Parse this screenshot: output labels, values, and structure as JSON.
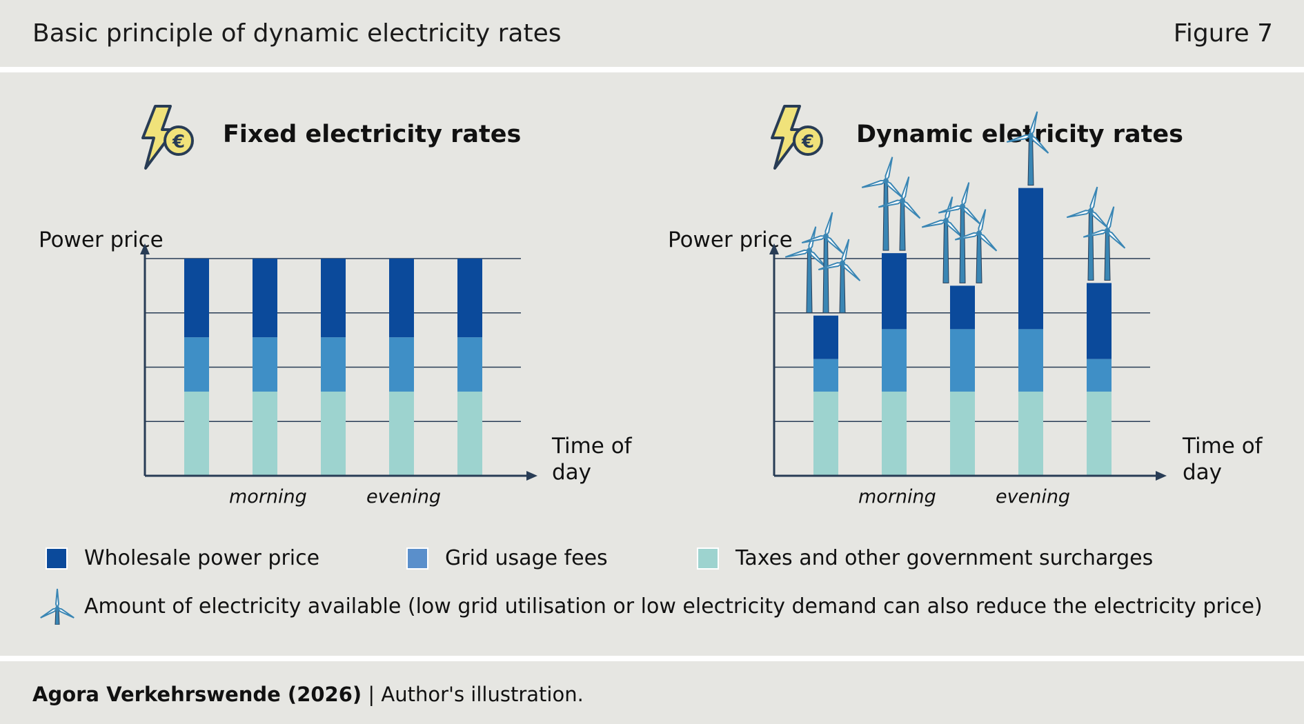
{
  "header": {
    "title": "Basic principle of dynamic electricity rates",
    "figure": "Figure 7"
  },
  "colors": {
    "wholesale": "#0b4a9b",
    "grid": "#3f8fc6",
    "taxes": "#9dd3cf",
    "axis": "#283c55",
    "turbine": "#3a86b4",
    "bolt": "#f0e27a"
  },
  "chart_data": [
    {
      "type": "bar",
      "title": "Fixed electricity rates",
      "ylabel": "Power price",
      "xlabel": "Time of day",
      "category_labels": [
        "morning",
        "evening"
      ],
      "series": [
        {
          "name": "Taxes and other government surcharges",
          "values": [
            1.55,
            1.55,
            1.55,
            1.55,
            1.55
          ]
        },
        {
          "name": "Grid usage fees",
          "values": [
            1.0,
            1.0,
            1.0,
            1.0,
            1.0
          ]
        },
        {
          "name": "Wholesale power price",
          "values": [
            1.45,
            1.45,
            1.45,
            1.45,
            1.45
          ]
        }
      ],
      "turbines": [
        0,
        0,
        0,
        0,
        0
      ],
      "ylim": [
        0,
        4
      ],
      "grid": true
    },
    {
      "type": "bar",
      "title": "Dynamic eletricity rates",
      "ylabel": "Power price",
      "xlabel": "Time of day",
      "category_labels": [
        "morning",
        "evening"
      ],
      "series": [
        {
          "name": "Taxes and other government surcharges",
          "values": [
            1.55,
            1.55,
            1.55,
            1.55,
            1.55
          ]
        },
        {
          "name": "Grid usage fees",
          "values": [
            0.6,
            1.15,
            1.15,
            1.15,
            0.6
          ]
        },
        {
          "name": "Wholesale power price",
          "values": [
            0.8,
            1.4,
            0.8,
            2.6,
            1.4
          ]
        }
      ],
      "turbines": [
        3,
        2,
        3,
        1,
        2
      ],
      "ylim": [
        0,
        4
      ],
      "grid": true
    }
  ],
  "legend": {
    "wholesale": "Wholesale power price",
    "grid": "Grid usage fees",
    "taxes": "Taxes and other government surcharges",
    "turbine": "Amount of electricity available (low grid utilisation or low electricity demand can also reduce the electricity price)"
  },
  "footer": {
    "source": "Agora Verkehrswende (2026)",
    "note": " | Author's illustration."
  }
}
